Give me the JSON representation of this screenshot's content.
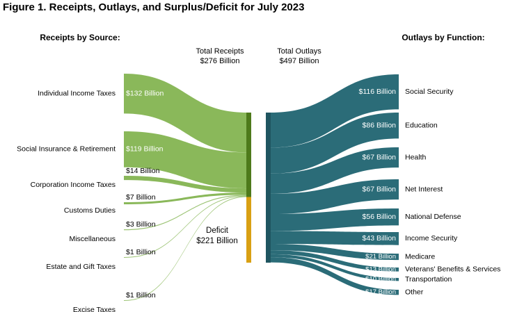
{
  "figure_title": "Figure 1. Receipts, Outlays, and Surplus/Deficit for July 2023",
  "chart_data": {
    "type": "sankey",
    "title": "Figure 1. Receipts, Outlays, and Surplus/Deficit for July 2023",
    "receipts_heading": "Receipts by Source:",
    "outlays_heading": "Outlays by Function:",
    "total_receipts": {
      "label_line1": "Total Receipts",
      "label_line2": "$276 Billion",
      "value": 276
    },
    "total_outlays": {
      "label_line1": "Total Outlays",
      "label_line2": "$497 Billion",
      "value": 497
    },
    "deficit": {
      "label_line1": "Deficit",
      "label_line2": "$221 Billion",
      "value": 221
    },
    "receipts": [
      {
        "name": "Individual Income Taxes",
        "value": 132,
        "label": "$132 Billion"
      },
      {
        "name": "Social Insurance & Retirement",
        "value": 119,
        "label": "$119 Billion"
      },
      {
        "name": "Corporation Income Taxes",
        "value": 14,
        "label": "$14 Billion"
      },
      {
        "name": "Customs Duties",
        "value": 7,
        "label": "$7 Billion"
      },
      {
        "name": "Miscellaneous",
        "value": 3,
        "label": "$3 Billion"
      },
      {
        "name": "Estate and Gift Taxes",
        "value": 1,
        "label": "$1 Billion"
      },
      {
        "name": "Excise Taxes",
        "value": 1,
        "label": "$1 Billion"
      }
    ],
    "outlays": [
      {
        "name": "Social Security",
        "value": 116,
        "label": "$116 Billion"
      },
      {
        "name": "Education",
        "value": 86,
        "label": "$86 Billion"
      },
      {
        "name": "Health",
        "value": 67,
        "label": "$67 Billion"
      },
      {
        "name": "Net Interest",
        "value": 67,
        "label": "$67 Billion"
      },
      {
        "name": "National Defense",
        "value": 56,
        "label": "$56 Billion"
      },
      {
        "name": "Income Security",
        "value": 43,
        "label": "$43 Billion"
      },
      {
        "name": "Medicare",
        "value": 21,
        "label": "$21 Billion"
      },
      {
        "name": "Veterans' Benefits & Services",
        "value": 13,
        "label": "$13 Billion"
      },
      {
        "name": "Transportation",
        "value": 10,
        "label": "$10 Billion"
      },
      {
        "name": "Other",
        "value": 17,
        "label": "$17 Billion"
      }
    ],
    "colors": {
      "receipts_flow": "#8ab85a",
      "receipts_bar": "#4e7a1b",
      "deficit_bar": "#d9a013",
      "outlays_flow": "#2b6c78",
      "outlays_bar": "#1f5560"
    }
  }
}
